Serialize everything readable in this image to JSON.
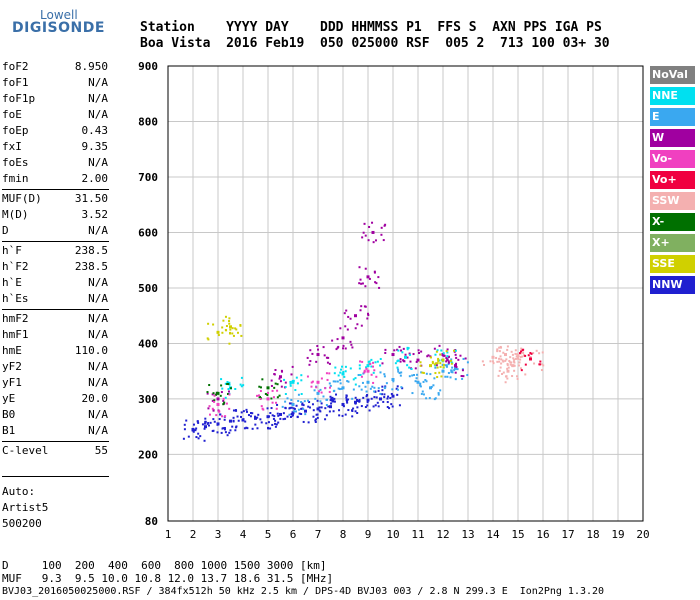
{
  "logo": {
    "line1": "Lowell",
    "line2": "DIGISONDE"
  },
  "header": {
    "row1": "Station    YYYY DAY    DDD HHMMSS P1  FFS S  AXN PPS IGA PS",
    "row2": "Boa Vista  2016 Feb19  050 025000 RSF  005 2  713 100 03+ 30"
  },
  "params": [
    {
      "label": "foF2",
      "value": "8.950"
    },
    {
      "label": "foF1",
      "value": "N/A"
    },
    {
      "label": "foF1p",
      "value": "N/A"
    },
    {
      "label": "foE",
      "value": "N/A"
    },
    {
      "label": "foEp",
      "value": "0.43"
    },
    {
      "label": "fxI",
      "value": "9.35"
    },
    {
      "label": "foEs",
      "value": "N/A"
    },
    {
      "label": "fmin",
      "value": "2.00"
    },
    {
      "label": "MUF(D)",
      "value": "31.50"
    },
    {
      "label": "M(D)",
      "value": "3.52"
    },
    {
      "label": "D",
      "value": "N/A"
    },
    {
      "label": "h`F",
      "value": "238.5"
    },
    {
      "label": "h`F2",
      "value": "238.5"
    },
    {
      "label": "h`E",
      "value": "N/A"
    },
    {
      "label": "h`Es",
      "value": "N/A"
    },
    {
      "label": "hmF2",
      "value": "N/A"
    },
    {
      "label": "hmF1",
      "value": "N/A"
    },
    {
      "label": "hmE",
      "value": "110.0"
    },
    {
      "label": "yF2",
      "value": "N/A"
    },
    {
      "label": "yF1",
      "value": "N/A"
    },
    {
      "label": "yE",
      "value": "20.0"
    },
    {
      "label": "B0",
      "value": "N/A"
    },
    {
      "label": "B1",
      "value": "N/A"
    },
    {
      "label": "C-level",
      "value": "55"
    }
  ],
  "auto": {
    "line1": "Auto:",
    "line2": "Artist5",
    "line3": "500200"
  },
  "footer": {
    "d_row": "D     100  200  400  600  800 1000 1500 3000 [km]",
    "muf_row": "MUF   9.3  9.5 10.0 10.8 12.0 13.7 18.6 31.5 [MHz]",
    "file_row": "BVJ03_2016050025000.RSF / 384fx512h 50 kHz 2.5 km / DPS-4D BVJ03 003 / 2.8 N 299.3 E  Ion2Png 1.3.20"
  },
  "legend": [
    {
      "label": "NoVal",
      "color": "#808080"
    },
    {
      "label": "NNE",
      "color": "#00e0f0"
    },
    {
      "label": "E",
      "color": "#3aa8f0"
    },
    {
      "label": "W",
      "color": "#a000a0"
    },
    {
      "label": "Vo-",
      "color": "#f040c0"
    },
    {
      "label": "Vo+",
      "color": "#f00040"
    },
    {
      "label": "SSW",
      "color": "#f4b0b0"
    },
    {
      "label": "X-",
      "color": "#007000"
    },
    {
      "label": "X+",
      "color": "#80b060"
    },
    {
      "label": "SSE",
      "color": "#d0d000"
    },
    {
      "label": "NNW",
      "color": "#2020d0"
    }
  ],
  "chart_data": {
    "type": "scatter",
    "title": "",
    "xlabel": "",
    "ylabel": "",
    "xlim": [
      1,
      20
    ],
    "ylim": [
      80,
      900
    ],
    "x_ticks": [
      1,
      2,
      3,
      4,
      5,
      6,
      7,
      8,
      9,
      10,
      11,
      12,
      13,
      14,
      15,
      16,
      17,
      18,
      19,
      20
    ],
    "y_ticks": [
      80,
      200,
      300,
      400,
      500,
      600,
      700,
      800,
      900
    ],
    "grid": true,
    "series": [
      {
        "name": "NNW",
        "points": [
          [
            2.0,
            245
          ],
          [
            2.5,
            250
          ],
          [
            3.0,
            255
          ],
          [
            3.5,
            260
          ],
          [
            4.0,
            262
          ],
          [
            4.5,
            265
          ],
          [
            5.0,
            268
          ],
          [
            5.5,
            272
          ],
          [
            6.0,
            275
          ],
          [
            6.5,
            278
          ],
          [
            7.0,
            282
          ],
          [
            7.5,
            286
          ],
          [
            8.0,
            290
          ],
          [
            8.5,
            294
          ],
          [
            9.0,
            298
          ],
          [
            9.5,
            300
          ],
          [
            10.0,
            305
          ]
        ]
      },
      {
        "name": "E",
        "points": [
          [
            6.0,
            290
          ],
          [
            7.0,
            310
          ],
          [
            8.0,
            320
          ],
          [
            9.0,
            330
          ],
          [
            10.0,
            335
          ],
          [
            11.0,
            330
          ],
          [
            11.5,
            320
          ],
          [
            12.0,
            350
          ],
          [
            12.5,
            355
          ]
        ]
      },
      {
        "name": "W",
        "points": [
          [
            3.0,
            300
          ],
          [
            5.5,
            340
          ],
          [
            7.0,
            380
          ],
          [
            8.0,
            410
          ],
          [
            8.5,
            450
          ],
          [
            9.0,
            520
          ],
          [
            9.2,
            600
          ],
          [
            10.0,
            380
          ],
          [
            11.0,
            370
          ],
          [
            12.0,
            380
          ],
          [
            12.5,
            360
          ]
        ]
      },
      {
        "name": "SSW",
        "points": [
          [
            14.0,
            375
          ],
          [
            14.5,
            380
          ],
          [
            15.0,
            378
          ],
          [
            15.5,
            372
          ],
          [
            14.8,
            360
          ],
          [
            14.6,
            350
          ]
        ]
      },
      {
        "name": "NNE",
        "points": [
          [
            3.5,
            320
          ],
          [
            6.0,
            330
          ],
          [
            8.0,
            345
          ],
          [
            9.0,
            360
          ],
          [
            10.5,
            375
          ],
          [
            12.0,
            370
          ]
        ]
      },
      {
        "name": "SSE",
        "points": [
          [
            3.0,
            420
          ],
          [
            3.5,
            430
          ],
          [
            11.5,
            360
          ],
          [
            12.0,
            370
          ]
        ]
      },
      {
        "name": "X-",
        "points": [
          [
            3.0,
            310
          ],
          [
            5.0,
            320
          ]
        ]
      },
      {
        "name": "Vo-",
        "points": [
          [
            3.0,
            290
          ],
          [
            5.0,
            300
          ],
          [
            7.0,
            330
          ],
          [
            9.0,
            350
          ]
        ]
      },
      {
        "name": "Vo+",
        "points": [
          [
            15.5,
            372
          ]
        ]
      }
    ]
  }
}
